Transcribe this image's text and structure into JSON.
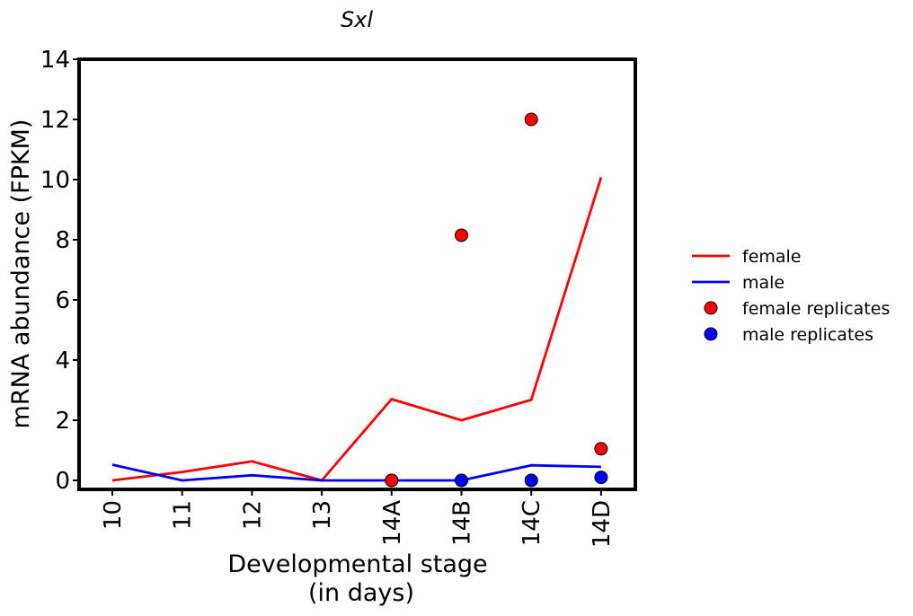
{
  "chart_data": {
    "type": "line",
    "title": "Sxl",
    "xlabel_line1": "Developmental stage",
    "xlabel_line2": "(in days)",
    "ylabel": "mRNA abundance (FPKM)",
    "categories": [
      "10",
      "11",
      "12",
      "13",
      "14A",
      "14B",
      "14C",
      "14D"
    ],
    "ylim": [
      -0.3,
      14
    ],
    "yticks": [
      0,
      2,
      4,
      6,
      8,
      10,
      12,
      14
    ],
    "grid": false,
    "legend_position": "right",
    "series": [
      {
        "name": "female",
        "kind": "line",
        "color": "#ff0000",
        "values": [
          0.0,
          0.28,
          0.63,
          0.0,
          2.7,
          2.0,
          2.68,
          10.07
        ]
      },
      {
        "name": "male",
        "kind": "line",
        "color": "#0000ff",
        "values": [
          0.52,
          0.0,
          0.17,
          0.0,
          0.0,
          0.0,
          0.5,
          0.45
        ]
      }
    ],
    "replicates": [
      {
        "name": "female replicates",
        "color": "#ff0000",
        "points": [
          {
            "x": "14A",
            "y": 0.0
          },
          {
            "x": "14B",
            "y": 8.15
          },
          {
            "x": "14C",
            "y": 12.0
          },
          {
            "x": "14D",
            "y": 1.05
          }
        ]
      },
      {
        "name": "male replicates",
        "color": "#0000ff",
        "points": [
          {
            "x": "14A",
            "y": 0.0
          },
          {
            "x": "14B",
            "y": 0.0
          },
          {
            "x": "14C",
            "y": 0.0
          },
          {
            "x": "14D",
            "y": 0.1
          }
        ]
      }
    ]
  }
}
